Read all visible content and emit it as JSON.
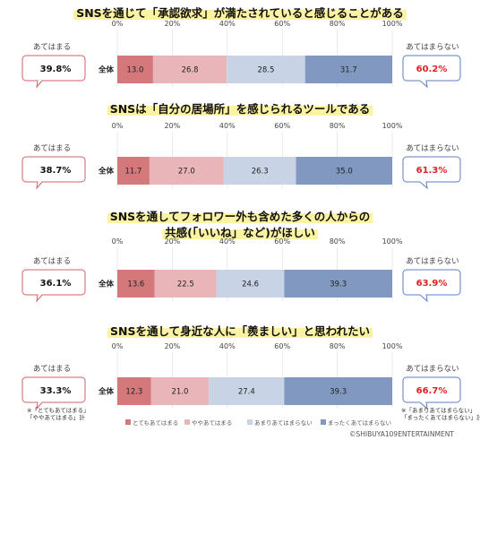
{
  "chart_data": {
    "type": "bar",
    "stacked": true,
    "orientation": "horizontal",
    "axis": {
      "ticks": [
        "0%",
        "20%",
        "40%",
        "60%",
        "80%",
        "100%"
      ],
      "xlim": [
        0,
        100
      ]
    },
    "category_label": "全体",
    "colors": [
      "#d4787c",
      "#e9b5b8",
      "#c9d3e6",
      "#8199c1"
    ],
    "legend": [
      "とてもあてはまる",
      "ややあてはまる",
      "あまりあてはまらない",
      "まったくあてはまらない"
    ],
    "panels": [
      {
        "title_lines": [
          "SNSを通じて「承認欲求」が満たされていると感じることがある"
        ],
        "values": [
          13.0,
          26.8,
          28.5,
          31.7
        ],
        "value_labels": [
          "13.0",
          "26.8",
          "28.5",
          "31.7"
        ],
        "agree_label": "あてはまる",
        "agree_value": "39.8%",
        "disagree_label": "あてはまらない",
        "disagree_value": "60.2%"
      },
      {
        "title_lines": [
          "SNSは「自分の居場所」を感じられるツールである"
        ],
        "values": [
          11.7,
          27.0,
          26.3,
          35.0
        ],
        "value_labels": [
          "11.7",
          "27.0",
          "26.3",
          "35.0"
        ],
        "agree_label": "あてはまる",
        "agree_value": "38.7%",
        "disagree_label": "あてはまらない",
        "disagree_value": "61.3%"
      },
      {
        "title_lines": [
          "SNSを通してフォロワー外も含めた多くの人からの",
          "共感(「いいね」など)がほしい"
        ],
        "values": [
          13.6,
          22.5,
          24.6,
          39.3
        ],
        "value_labels": [
          "13.6",
          "22.5",
          "24.6",
          "39.3"
        ],
        "agree_label": "あてはまる",
        "agree_value": "36.1%",
        "disagree_label": "あてはまらない",
        "disagree_value": "63.9%"
      },
      {
        "title_lines": [
          "SNSを通して身近な人に「羨ましい」と思われたい"
        ],
        "values": [
          12.3,
          21.0,
          27.4,
          39.3
        ],
        "value_labels": [
          "12.3",
          "21.0",
          "27.4",
          "39.3"
        ],
        "agree_label": "あてはまる",
        "agree_value": "33.3%",
        "disagree_label": "あてはまらない",
        "disagree_value": "66.7%"
      }
    ]
  },
  "notes": {
    "agree_line1": "※「とてもあてはまる」",
    "agree_line2": "「ややあてはまる」計",
    "disagree_line1": "※「あまりあてはまらない」",
    "disagree_line2": "「まったくあてはまらない」計"
  },
  "credit": "©SHIBUYA109ENTERTAINMENT"
}
